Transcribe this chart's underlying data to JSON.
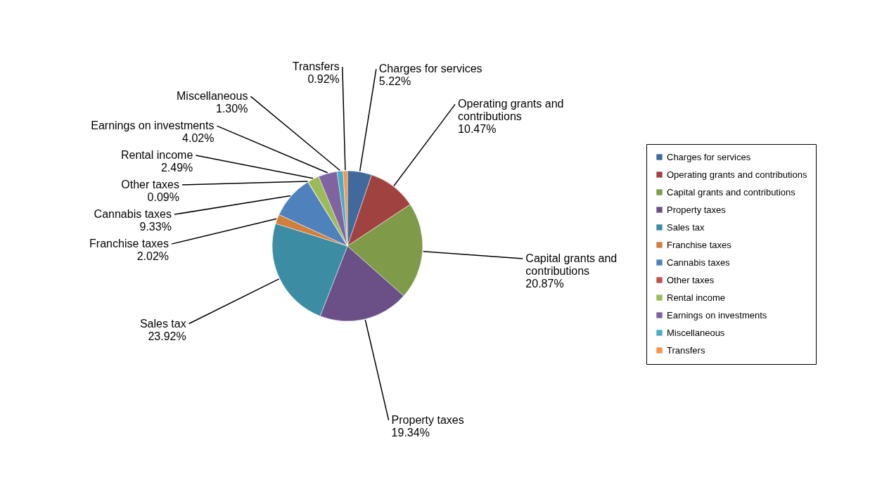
{
  "chart_data": {
    "type": "pie",
    "categories": [
      "Charges for services",
      "Operating grants and contributions",
      "Capital grants and contributions",
      "Property taxes",
      "Sales tax",
      "Franchise taxes",
      "Cannabis taxes",
      "Other taxes",
      "Rental income",
      "Earnings on investments",
      "Miscellaneous",
      "Transfers"
    ],
    "values": [
      5.22,
      10.47,
      20.87,
      19.34,
      23.92,
      2.02,
      9.33,
      0.09,
      2.49,
      4.02,
      1.3,
      0.92
    ],
    "value_labels": [
      "5.22%",
      "10.47%",
      "20.87%",
      "19.34%",
      "23.92%",
      "2.02%",
      "9.33%",
      "0.09%",
      "2.49%",
      "4.02%",
      "1.30%",
      "0.92%"
    ],
    "colors": [
      "#41699b",
      "#a04340",
      "#7f9a48",
      "#6a5087",
      "#3c8da3",
      "#d17f3e",
      "#4f81bd",
      "#c0504d",
      "#9bbb59",
      "#8064a2",
      "#4bacc6",
      "#f79646"
    ],
    "legend": "right"
  }
}
